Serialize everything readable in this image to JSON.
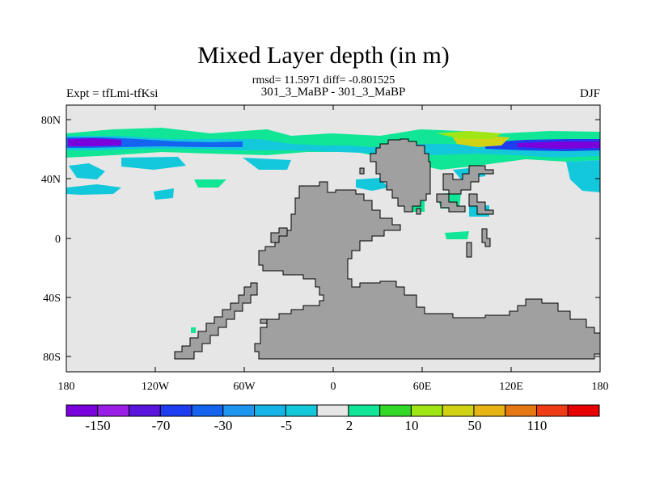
{
  "title": "Mixed Layer depth (in m)",
  "stats_text": "rmsd= 11.5971 diff= -0.801525",
  "left_string": "Expt = tfLmi-tfKsi",
  "center_string": "301_3_MaBP - 301_3_MaBP",
  "right_string": "DJF",
  "lat_ticks": [
    "80N",
    "40N",
    "0",
    "40S",
    "80S"
  ],
  "lon_ticks": [
    "180",
    "120W",
    "60W",
    "0",
    "60E",
    "120E",
    "180"
  ],
  "colorbar": {
    "colors": [
      "#7a00dc",
      "#9b1ee6",
      "#5a14dc",
      "#1e3cf0",
      "#1464f0",
      "#1e96f0",
      "#14b4e6",
      "#14c8dc",
      "#e6e6e6",
      "#10e696",
      "#32d728",
      "#a0e614",
      "#d2d214",
      "#e6b414",
      "#e67814",
      "#f03c14",
      "#e60000"
    ],
    "labels": [
      "-150",
      "-70",
      "-30",
      "-5",
      "2",
      "10",
      "50",
      "110"
    ]
  },
  "legend_colors": {
    "land": "#a0a0a0",
    "ocean_neutral": "#e6e6e6"
  }
}
